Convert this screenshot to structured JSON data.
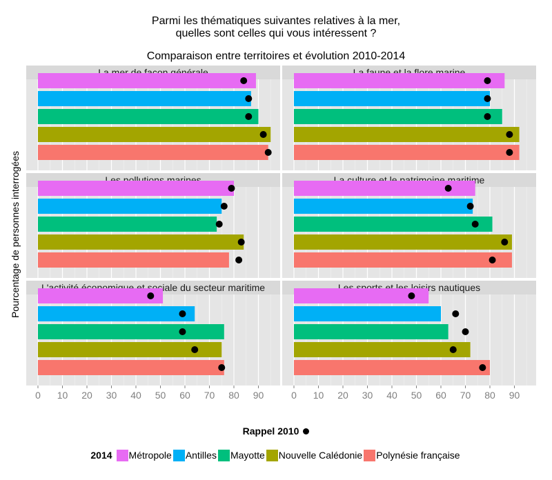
{
  "title_lines": [
    "Parmi les thématiques suivantes relatives à la mer,",
    "quelles sont celles qui vous intéressent ?",
    "Comparaison entre territoires et évolution 2010-2014"
  ],
  "y_axis_label": "Pourcentage de personnes interrogées",
  "legend": {
    "rappel_label": "Rappel 2010",
    "title_2014": "2014",
    "items": [
      {
        "name": "Métropole",
        "color": "#e76bf3"
      },
      {
        "name": "Antilles",
        "color": "#00b0f6"
      },
      {
        "name": "Mayotte",
        "color": "#00bf7d"
      },
      {
        "name": "Nouvelle Calédonie",
        "color": "#a3a500"
      },
      {
        "name": "Polynésie française",
        "color": "#f8766d"
      }
    ]
  },
  "chart_data": {
    "type": "bar",
    "orientation": "horizontal",
    "categories": [
      "Métropole",
      "Antilles",
      "Mayotte",
      "Nouvelle Calédonie",
      "Polynésie française"
    ],
    "xlim": [
      0,
      100
    ],
    "xticks": [
      0,
      10,
      20,
      30,
      40,
      50,
      60,
      70,
      80,
      90
    ],
    "panels": [
      {
        "title": "La mer de façon générale",
        "values_2014": [
          89,
          87,
          90,
          95,
          94
        ],
        "values_2010": [
          84,
          86,
          86,
          92,
          94
        ]
      },
      {
        "title": "La faune et la flore marine",
        "values_2014": [
          86,
          80,
          85,
          92,
          92
        ],
        "values_2010": [
          79,
          79,
          79,
          88,
          88
        ]
      },
      {
        "title": "Les pollutions marines",
        "values_2014": [
          80,
          75,
          73,
          84,
          78
        ],
        "values_2010": [
          79,
          76,
          74,
          83,
          82
        ]
      },
      {
        "title": "La culture et le patrimoine maritime",
        "values_2014": [
          74,
          73,
          81,
          89,
          89
        ],
        "values_2010": [
          63,
          72,
          74,
          86,
          81
        ]
      },
      {
        "title": "L'activité économique et sociale du secteur maritime",
        "values_2014": [
          51,
          64,
          76,
          75,
          76
        ],
        "values_2010": [
          46,
          59,
          59,
          64,
          75
        ]
      },
      {
        "title": "Les sports et les loisirs nautiques",
        "values_2014": [
          55,
          60,
          63,
          72,
          80
        ],
        "values_2010": [
          48,
          66,
          70,
          65,
          77
        ]
      }
    ]
  }
}
